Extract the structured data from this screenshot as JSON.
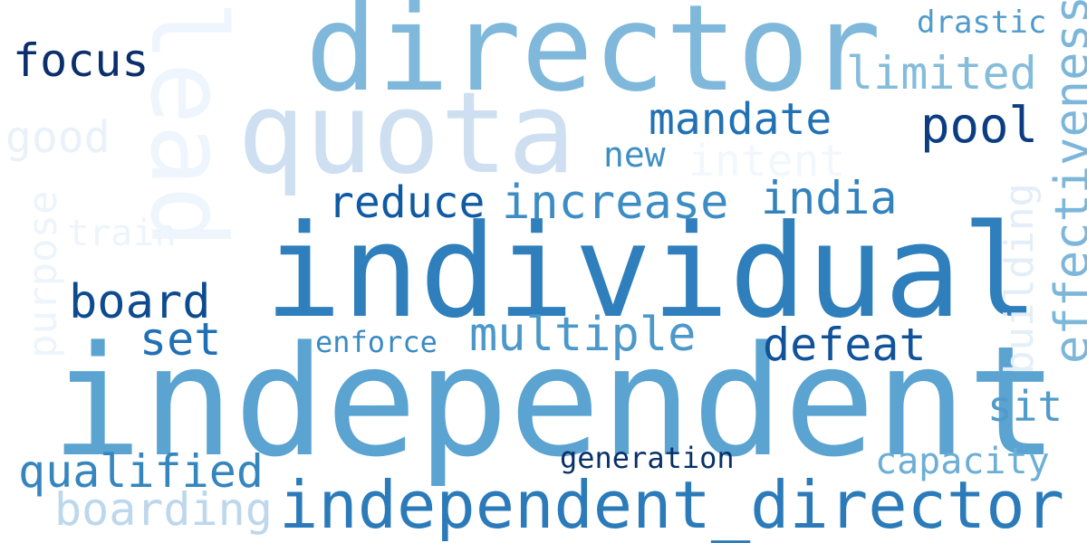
{
  "words": [
    {
      "text": "independent",
      "color": "#5ba3d0"
    },
    {
      "text": "individual",
      "color": "#2f7fbd"
    },
    {
      "text": "director",
      "color": "#7fb8da"
    },
    {
      "text": "quota",
      "color": "#cddff0"
    },
    {
      "text": "lead",
      "color": "#eef5fc"
    },
    {
      "text": "independent_director",
      "color": "#2b7bba"
    },
    {
      "text": "effectiveness",
      "color": "#7cb7da"
    },
    {
      "text": "building",
      "color": "#e3eef9"
    },
    {
      "text": "focus",
      "color": "#0a2f6b"
    },
    {
      "text": "drastic",
      "color": "#4f9bcb"
    },
    {
      "text": "limited",
      "color": "#84bcdb"
    },
    {
      "text": "mandate",
      "color": "#2171b5"
    },
    {
      "text": "pool",
      "color": "#0b3d80"
    },
    {
      "text": "new",
      "color": "#3f8fc5"
    },
    {
      "text": "intent",
      "color": "#f2f7fd"
    },
    {
      "text": "good",
      "color": "#e9f1fa"
    },
    {
      "text": "purpose",
      "color": "#edf4fc"
    },
    {
      "text": "train",
      "color": "#edf4fc"
    },
    {
      "text": "reduce",
      "color": "#0f5aa3"
    },
    {
      "text": "increase",
      "color": "#3d8dc4"
    },
    {
      "text": "india",
      "color": "#3282be"
    },
    {
      "text": "board",
      "color": "#0d4a8f"
    },
    {
      "text": "set",
      "color": "#2070b4"
    },
    {
      "text": "multiple",
      "color": "#4c98ca"
    },
    {
      "text": "enforce",
      "color": "#3b8bc2"
    },
    {
      "text": "defeat",
      "color": "#11539b"
    },
    {
      "text": "sit",
      "color": "#4f9bcb"
    },
    {
      "text": "qualified",
      "color": "#3585bf"
    },
    {
      "text": "generation",
      "color": "#08306b"
    },
    {
      "text": "capacity",
      "color": "#6baed6"
    },
    {
      "text": "boarding",
      "color": "#bdd7ec"
    }
  ]
}
